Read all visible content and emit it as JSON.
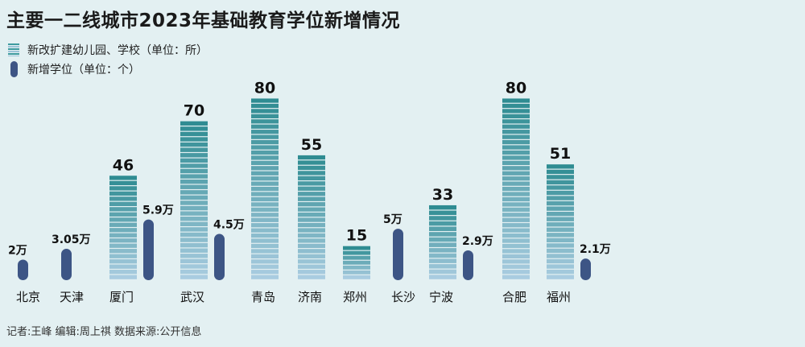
{
  "title": "主要一二线城市2023年基础教育学位新增情况",
  "legend": {
    "schools": "新改扩建幼儿园、学校（单位：所）",
    "seats": "新增学位（单位：个）"
  },
  "footer": "记者:王峰  编辑:周上祺  数据来源:公开信息",
  "colors": {
    "bar_top": "#2f8c92",
    "bar_bottom": "#a9cce0",
    "pill": "#3d5585",
    "background": "#e3f0f2"
  },
  "chart_data": {
    "type": "bar",
    "categories": [
      "北京",
      "天津",
      "厦门",
      "武汉",
      "青岛",
      "济南",
      "郑州",
      "长沙",
      "宁波",
      "合肥",
      "福州"
    ],
    "series": [
      {
        "name": "新改扩建幼儿园、学校（单位：所）",
        "values": [
          null,
          null,
          46,
          70,
          80,
          55,
          15,
          null,
          33,
          80,
          51
        ],
        "labels": [
          "",
          "",
          "46",
          "70",
          "80",
          "55",
          "15",
          "",
          "33",
          "80",
          "51"
        ]
      },
      {
        "name": "新增学位（单位：个）",
        "values": [
          20000,
          30500,
          59000,
          45000,
          null,
          null,
          null,
          50000,
          29000,
          null,
          21000
        ],
        "labels": [
          "2万",
          "3.05万",
          "5.9万",
          "4.5万",
          "",
          "",
          "",
          "5万",
          "2.9万",
          "",
          "2.1万"
        ]
      }
    ]
  }
}
